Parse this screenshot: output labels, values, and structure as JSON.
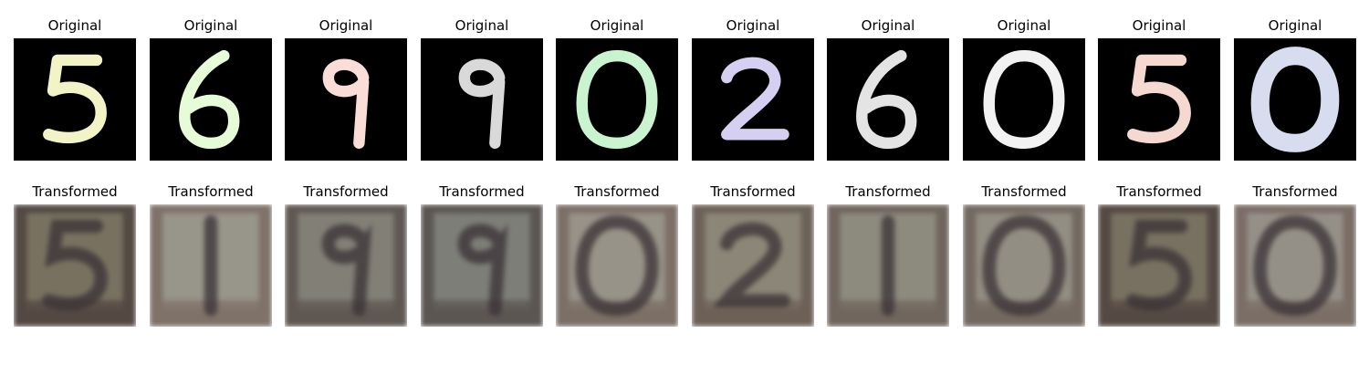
{
  "figure": {
    "original_title": "Original",
    "transformed_title": "Transformed",
    "panels": [
      {
        "original": {
          "digit": "5",
          "color": "#f2f4c8"
        },
        "transformed": {
          "digit": "5",
          "bg": "#544943",
          "fg": "#a7a284"
        }
      },
      {
        "original": {
          "digit": "6",
          "color": "#e6fbd8"
        },
        "transformed": {
          "digit": "1",
          "bg": "#7f7268",
          "fg": "#b9c2b4"
        }
      },
      {
        "original": {
          "digit": "9",
          "color": "#f9ddd6"
        },
        "transformed": {
          "digit": "9",
          "bg": "#5f5853",
          "fg": "#aab0a1"
        }
      },
      {
        "original": {
          "digit": "9",
          "color": "#d9d9d9"
        },
        "transformed": {
          "digit": "9",
          "bg": "#5b5652",
          "fg": "#a6b0a5"
        }
      },
      {
        "original": {
          "digit": "0",
          "color": "#c9f4cf"
        },
        "transformed": {
          "digit": "0",
          "bg": "#7c6f66",
          "fg": "#b8bfb1"
        }
      },
      {
        "original": {
          "digit": "2",
          "color": "#d5d0f1"
        },
        "transformed": {
          "digit": "2",
          "bg": "#6d6258",
          "fg": "#b2b39f"
        }
      },
      {
        "original": {
          "digit": "6",
          "color": "#e4e4e4"
        },
        "transformed": {
          "digit": "1",
          "bg": "#70665e",
          "fg": "#b1b5a6"
        }
      },
      {
        "original": {
          "digit": "0",
          "color": "#f2f2f2"
        },
        "transformed": {
          "digit": "0",
          "bg": "#746961",
          "fg": "#b8bcae"
        }
      },
      {
        "original": {
          "digit": "5",
          "color": "#f5d8cf"
        },
        "transformed": {
          "digit": "5",
          "bg": "#554a43",
          "fg": "#a49f84"
        }
      },
      {
        "original": {
          "digit": "0",
          "color": "#d7ddef"
        },
        "transformed": {
          "digit": "0",
          "bg": "#7b6e66",
          "fg": "#b6bbb0"
        }
      }
    ]
  }
}
